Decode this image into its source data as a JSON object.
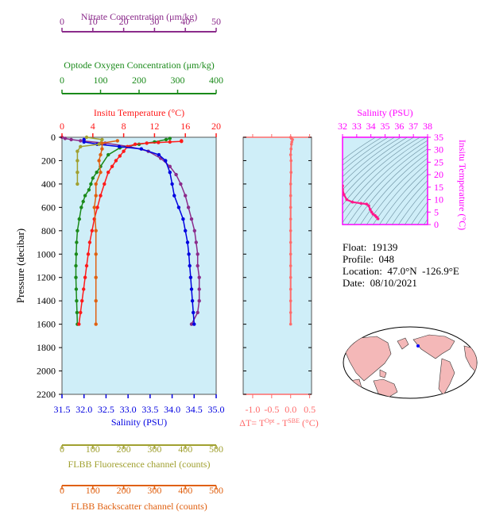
{
  "colors": {
    "plot_bg": "#cfeef8",
    "nitrate": "#8b2b8b",
    "oxygen": "#1a8a1a",
    "temperature": "#ff1a1a",
    "salinity": "#0000e0",
    "fluorescence": "#a0a030",
    "backscatter": "#e06010",
    "delta_t": "#ff6b6b",
    "ts_axis": "#ff00ff",
    "ts_line": "#ff1a8c",
    "ts_contour": "#6b8fa0",
    "land": "#f4b8b8",
    "ocean": "#ffffff"
  },
  "info": {
    "float_line": "Float:  19139",
    "profile_line": "Profile:  048",
    "location_line": "Location:  47.0°N  -126.9°E",
    "date_line": "Date:  08/10/2021"
  },
  "chart_data": [
    {
      "type": "line",
      "panel": "profiles",
      "y_axis": {
        "label": "Pressure (decibar)",
        "range": [
          2200,
          0
        ],
        "ticks": [
          0,
          200,
          400,
          600,
          800,
          1000,
          1200,
          1400,
          1600,
          1800,
          2000,
          2200
        ]
      },
      "axes": [
        {
          "key": "nitrate",
          "label": "Nitrate Concentration (μm/kg)",
          "range": [
            0,
            50
          ],
          "ticks": [
            0,
            10,
            20,
            30,
            40,
            50
          ],
          "position": "top"
        },
        {
          "key": "oxygen",
          "label": "Optode Oxygen Concentration (μm/kg)",
          "range": [
            0,
            400
          ],
          "ticks": [
            0,
            100,
            200,
            300,
            400
          ],
          "position": "top"
        },
        {
          "key": "temperature",
          "label": "Insitu Temperature (°C)",
          "range": [
            0,
            20
          ],
          "ticks": [
            0,
            4,
            8,
            12,
            16,
            20
          ],
          "tick_labels": [
            "0",
            "4",
            "8",
            "12",
            "16",
            "20"
          ],
          "position": "top"
        },
        {
          "key": "salinity",
          "label": "Salinity (PSU)",
          "range": [
            31.5,
            35.0
          ],
          "ticks": [
            31.5,
            32.0,
            32.5,
            33.0,
            33.5,
            34.0,
            34.5,
            35.0
          ],
          "tick_labels": [
            "31.5",
            "32.0",
            "32.5",
            "33.0",
            "33.5",
            "34.0",
            "34.5",
            "35.0"
          ],
          "position": "bottom"
        },
        {
          "key": "fluorescence",
          "label": "FLBB Fluorescence channel (counts)",
          "range": [
            0,
            500
          ],
          "ticks": [
            0,
            100,
            200,
            300,
            400,
            500
          ],
          "position": "bottom"
        },
        {
          "key": "backscatter",
          "label": "FLBB Backscatter channel (counts)",
          "range": [
            0,
            500
          ],
          "ticks": [
            0,
            100,
            200,
            300,
            400,
            500
          ],
          "position": "bottom"
        }
      ],
      "series": [
        {
          "key": "nitrate",
          "points": [
            [
              0,
              0
            ],
            [
              1,
              10
            ],
            [
              3,
              20
            ],
            [
              6,
              30
            ],
            [
              14,
              50
            ],
            [
              22,
              80
            ],
            [
              28,
              120
            ],
            [
              32,
              180
            ],
            [
              35,
              250
            ],
            [
              37,
              320
            ],
            [
              38.5,
              400
            ],
            [
              40,
              500
            ],
            [
              41,
              600
            ],
            [
              42,
              700
            ],
            [
              43,
              800
            ],
            [
              43.5,
              900
            ],
            [
              44,
              1000
            ],
            [
              44,
              1100
            ],
            [
              44.5,
              1200
            ],
            [
              44.5,
              1300
            ],
            [
              44.5,
              1400
            ],
            [
              44,
              1500
            ],
            [
              42,
              1600
            ]
          ]
        },
        {
          "key": "oxygen",
          "points": [
            [
              280,
              10
            ],
            [
              270,
              20
            ],
            [
              240,
              40
            ],
            [
              200,
              60
            ],
            [
              150,
              90
            ],
            [
              120,
              150
            ],
            [
              100,
              250
            ],
            [
              90,
              300
            ],
            [
              80,
              350
            ],
            [
              75,
              400
            ],
            [
              70,
              450
            ],
            [
              60,
              500
            ],
            [
              55,
              550
            ],
            [
              50,
              600
            ],
            [
              45,
              700
            ],
            [
              40,
              800
            ],
            [
              38,
              900
            ],
            [
              37,
              1000
            ],
            [
              36,
              1100
            ],
            [
              36,
              1200
            ],
            [
              37,
              1300
            ],
            [
              38,
              1400
            ],
            [
              39,
              1500
            ],
            [
              40,
              1600
            ]
          ]
        },
        {
          "key": "temperature",
          "points": [
            [
              15.5,
              30
            ],
            [
              15.5,
              35
            ],
            [
              14,
              40
            ],
            [
              12.5,
              45
            ],
            [
              11,
              50
            ],
            [
              9.5,
              60
            ],
            [
              8.5,
              80
            ],
            [
              8,
              120
            ],
            [
              7.5,
              160
            ],
            [
              7,
              200
            ],
            [
              6.5,
              250
            ],
            [
              6,
              300
            ],
            [
              5.5,
              400
            ],
            [
              5,
              500
            ],
            [
              4.6,
              600
            ],
            [
              4.2,
              700
            ],
            [
              3.9,
              800
            ],
            [
              3.6,
              900
            ],
            [
              3.4,
              1000
            ],
            [
              3.2,
              1100
            ],
            [
              3.0,
              1200
            ],
            [
              2.8,
              1300
            ],
            [
              2.6,
              1400
            ],
            [
              2.4,
              1500
            ],
            [
              2.2,
              1600
            ]
          ]
        },
        {
          "key": "salinity",
          "points": [
            [
              32.0,
              20
            ],
            [
              32.0,
              40
            ],
            [
              32.3,
              60
            ],
            [
              32.8,
              80
            ],
            [
              33.3,
              100
            ],
            [
              33.7,
              150
            ],
            [
              33.85,
              200
            ],
            [
              33.95,
              300
            ],
            [
              34.0,
              400
            ],
            [
              34.05,
              500
            ],
            [
              34.15,
              600
            ],
            [
              34.25,
              700
            ],
            [
              34.3,
              800
            ],
            [
              34.35,
              900
            ],
            [
              34.38,
              1000
            ],
            [
              34.4,
              1100
            ],
            [
              34.42,
              1200
            ],
            [
              34.44,
              1300
            ],
            [
              34.46,
              1400
            ],
            [
              34.48,
              1500
            ],
            [
              34.5,
              1600
            ]
          ]
        },
        {
          "key": "fluorescence",
          "points": [
            [
              80,
              0
            ],
            [
              130,
              20
            ],
            [
              120,
              60
            ],
            [
              60,
              80
            ],
            [
              50,
              120
            ],
            [
              50,
              200
            ],
            [
              50,
              300
            ],
            [
              50,
              400
            ]
          ]
        },
        {
          "key": "backscatter",
          "points": [
            [
              180,
              30
            ],
            [
              130,
              50
            ],
            [
              130,
              100
            ],
            [
              125,
              150
            ],
            [
              120,
              200
            ],
            [
              125,
              300
            ],
            [
              110,
              400
            ],
            [
              110,
              500
            ],
            [
              105,
              600
            ],
            [
              110,
              800
            ],
            [
              110,
              1000
            ],
            [
              110,
              1200
            ],
            [
              110,
              1400
            ],
            [
              110,
              1600
            ]
          ]
        }
      ]
    },
    {
      "type": "line",
      "panel": "delta_t",
      "x_axis": {
        "label_main": "ΔT= T",
        "sup1": "Opt",
        "label_mid": " - T",
        "sup2": "SBE",
        "label_end": " (°C)",
        "range": [
          -1.25,
          0.55
        ],
        "ticks": [
          -1.0,
          -0.5,
          0.0,
          0.5
        ],
        "tick_labels": [
          "-1.0",
          "-0.5",
          "0.0",
          "0.5"
        ]
      },
      "series": [
        {
          "key": "delta_t",
          "points": [
            [
              0.0,
              0
            ],
            [
              0.02,
              10
            ],
            [
              0.05,
              20
            ],
            [
              0.03,
              40
            ],
            [
              0.02,
              60
            ],
            [
              0.01,
              100
            ],
            [
              0.0,
              150
            ],
            [
              0.01,
              200
            ],
            [
              0.01,
              300
            ],
            [
              0.0,
              400
            ],
            [
              0.0,
              500
            ],
            [
              0.0,
              600
            ],
            [
              0.0,
              700
            ],
            [
              0.0,
              800
            ],
            [
              0.0,
              900
            ],
            [
              0.0,
              1000
            ],
            [
              0.0,
              1100
            ],
            [
              0.0,
              1200
            ],
            [
              0.0,
              1300
            ],
            [
              0.0,
              1400
            ],
            [
              0.0,
              1500
            ],
            [
              0.0,
              1600
            ]
          ]
        }
      ]
    },
    {
      "type": "line",
      "panel": "ts_diagram",
      "x_axis": {
        "label": "Salinity (PSU)",
        "range": [
          32,
          38
        ],
        "ticks": [
          32,
          33,
          34,
          35,
          36,
          37,
          38
        ],
        "position": "top"
      },
      "y_axis": {
        "label": "Insitu Temperature (°C)",
        "range": [
          0,
          35
        ],
        "ticks": [
          0,
          5,
          10,
          15,
          20,
          25,
          30,
          35
        ],
        "position": "right"
      },
      "series": [
        {
          "key": "ts",
          "points": [
            [
              32.0,
              15.5
            ],
            [
              32.0,
              14.0
            ],
            [
              32.1,
              12.0
            ],
            [
              32.3,
              10.0
            ],
            [
              32.7,
              9.0
            ],
            [
              33.3,
              8.5
            ],
            [
              33.7,
              8.2
            ],
            [
              33.85,
              7.5
            ],
            [
              33.95,
              6.0
            ],
            [
              34.05,
              5.0
            ],
            [
              34.15,
              4.2
            ],
            [
              34.3,
              3.6
            ],
            [
              34.4,
              3.0
            ],
            [
              34.5,
              2.3
            ]
          ]
        }
      ]
    }
  ]
}
